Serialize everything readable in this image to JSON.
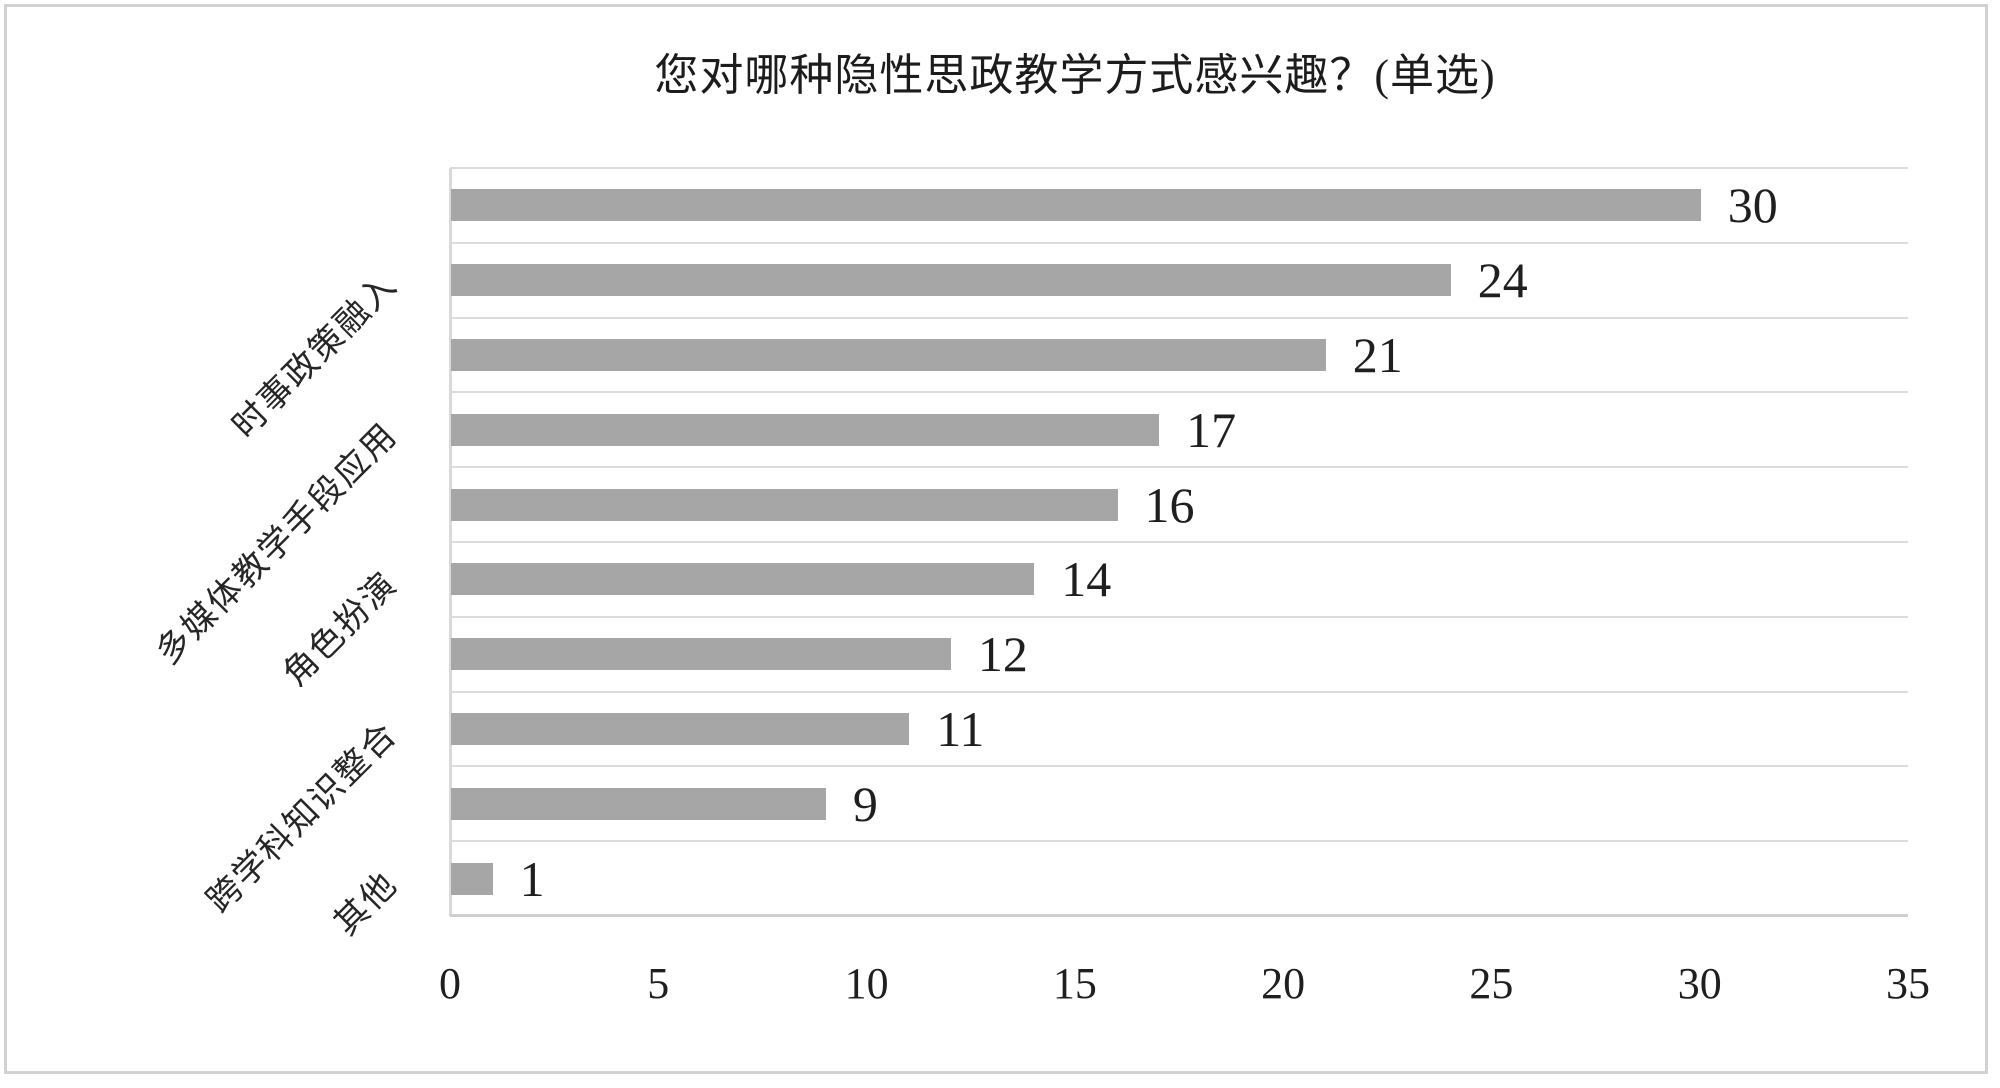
{
  "chart_data": {
    "type": "bar",
    "orientation": "horizontal",
    "title": "您对哪种隐性思政教学方式感兴趣？(单选)",
    "values": [
      30,
      24,
      21,
      17,
      16,
      14,
      12,
      11,
      9,
      1
    ],
    "data_labels": [
      30,
      24,
      21,
      17,
      16,
      14,
      12,
      11,
      9,
      1
    ],
    "visible_category_labels": [
      {
        "label": "时事政策融入",
        "row_index": 1
      },
      {
        "label": "多媒体教学手段应用",
        "row_index": 3
      },
      {
        "label": "角色扮演",
        "row_index": 5
      },
      {
        "label": "跨学科知识整合",
        "row_index": 7
      },
      {
        "label": "其他",
        "row_index": 9
      }
    ],
    "x_ticks": [
      0,
      5,
      10,
      15,
      20,
      25,
      30,
      35
    ],
    "xlim": [
      0,
      35
    ],
    "grid": "horizontal-category-separators",
    "legend": "none",
    "bar_color": "#a6a6a6",
    "gridline_color": "#dcdcdc",
    "text_color": "#1f1f1f"
  }
}
